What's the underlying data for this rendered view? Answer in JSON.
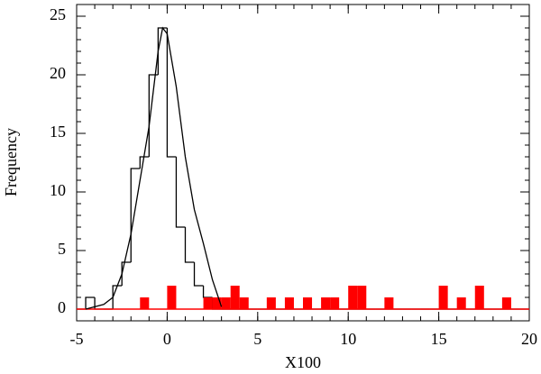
{
  "chart_data": {
    "type": "histogram",
    "xlabel": "X100",
    "ylabel": "Frequency",
    "xlim": [
      -5,
      20
    ],
    "ylim": [
      -1,
      26
    ],
    "xticks": [
      -5,
      0,
      5,
      10,
      15,
      20
    ],
    "yticks": [
      0,
      5,
      10,
      15,
      20,
      25
    ],
    "xminor_step": 1,
    "yminor_step": 1,
    "bins": [
      -5,
      -4.5,
      -4,
      -3.5,
      -3,
      -2.5,
      -2,
      -1.5,
      -1,
      -0.5,
      0,
      0.5,
      1,
      1.5,
      2,
      2.5,
      3,
      3.5,
      4,
      4.5,
      5,
      5.5,
      6,
      6.5,
      7,
      7.5,
      8,
      8.5,
      9,
      9.5,
      10,
      10.5,
      11,
      11.5,
      12,
      12.5,
      13,
      13.5,
      14,
      14.5,
      15,
      15.5,
      16,
      16.5,
      17,
      17.5,
      18,
      18.5,
      19,
      19.5,
      20
    ],
    "series": [
      {
        "color": "#000000",
        "fill": false,
        "values": [
          0,
          1,
          0,
          0,
          2,
          4,
          12,
          13,
          20,
          24,
          13,
          7,
          4,
          2,
          1,
          0,
          0,
          0,
          0,
          0,
          0,
          0,
          0,
          0,
          0,
          0,
          0,
          0,
          0,
          0,
          0,
          0,
          0,
          0,
          0,
          0,
          0,
          0,
          0,
          0,
          0,
          0,
          0,
          0,
          0,
          0,
          0,
          0,
          0,
          0
        ]
      },
      {
        "color": "#ff0000",
        "fill": true,
        "values": [
          0,
          0,
          0,
          0,
          0,
          0,
          0,
          1,
          0,
          0,
          2,
          0,
          0,
          0,
          1,
          1,
          1,
          2,
          1,
          0,
          0,
          1,
          0,
          1,
          0,
          1,
          0,
          1,
          1,
          0,
          2,
          2,
          0,
          0,
          1,
          0,
          0,
          0,
          0,
          0,
          2,
          0,
          1,
          0,
          2,
          0,
          0,
          1,
          0,
          0
        ]
      }
    ],
    "curve": {
      "color": "#000000",
      "x": [
        -4.5,
        -3.5,
        -3,
        -2.5,
        -2,
        -1.5,
        -1,
        -0.5,
        -0.25,
        0,
        0.5,
        1,
        1.5,
        2,
        2.5,
        3
      ],
      "y": [
        0,
        0.4,
        1,
        3,
        6.4,
        11,
        15.6,
        22,
        24,
        23.5,
        19,
        13,
        8.5,
        5.6,
        2.5,
        0.2
      ]
    }
  }
}
